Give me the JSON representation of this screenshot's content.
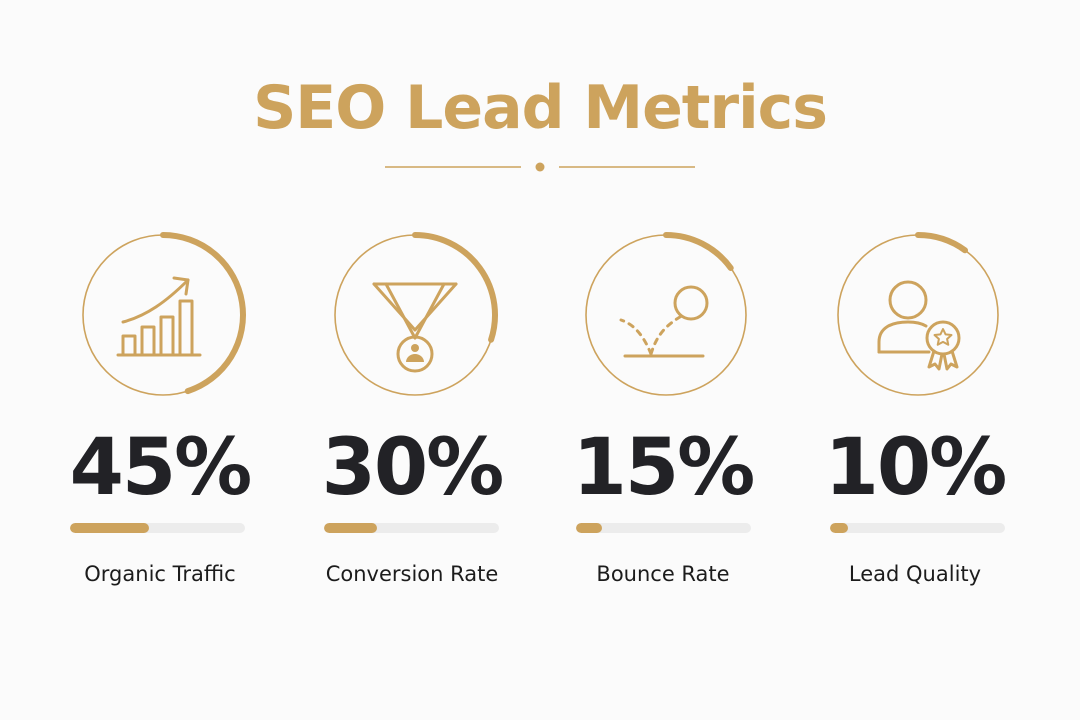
{
  "colors": {
    "accent": "#cda35d",
    "text": "#222226",
    "track": "#ececec"
  },
  "title": "SEO Lead Metrics",
  "metrics": [
    {
      "value": "45%",
      "label": "Organic Traffic",
      "percent": 45,
      "icon": "growth-chart-icon"
    },
    {
      "value": "30%",
      "label": "Conversion Rate",
      "percent": 30,
      "icon": "funnel-user-icon"
    },
    {
      "value": "15%",
      "label": "Bounce Rate",
      "percent": 15,
      "icon": "bouncing-ball-icon"
    },
    {
      "value": "10%",
      "label": "Lead Quality",
      "percent": 10,
      "icon": "user-award-icon"
    }
  ]
}
